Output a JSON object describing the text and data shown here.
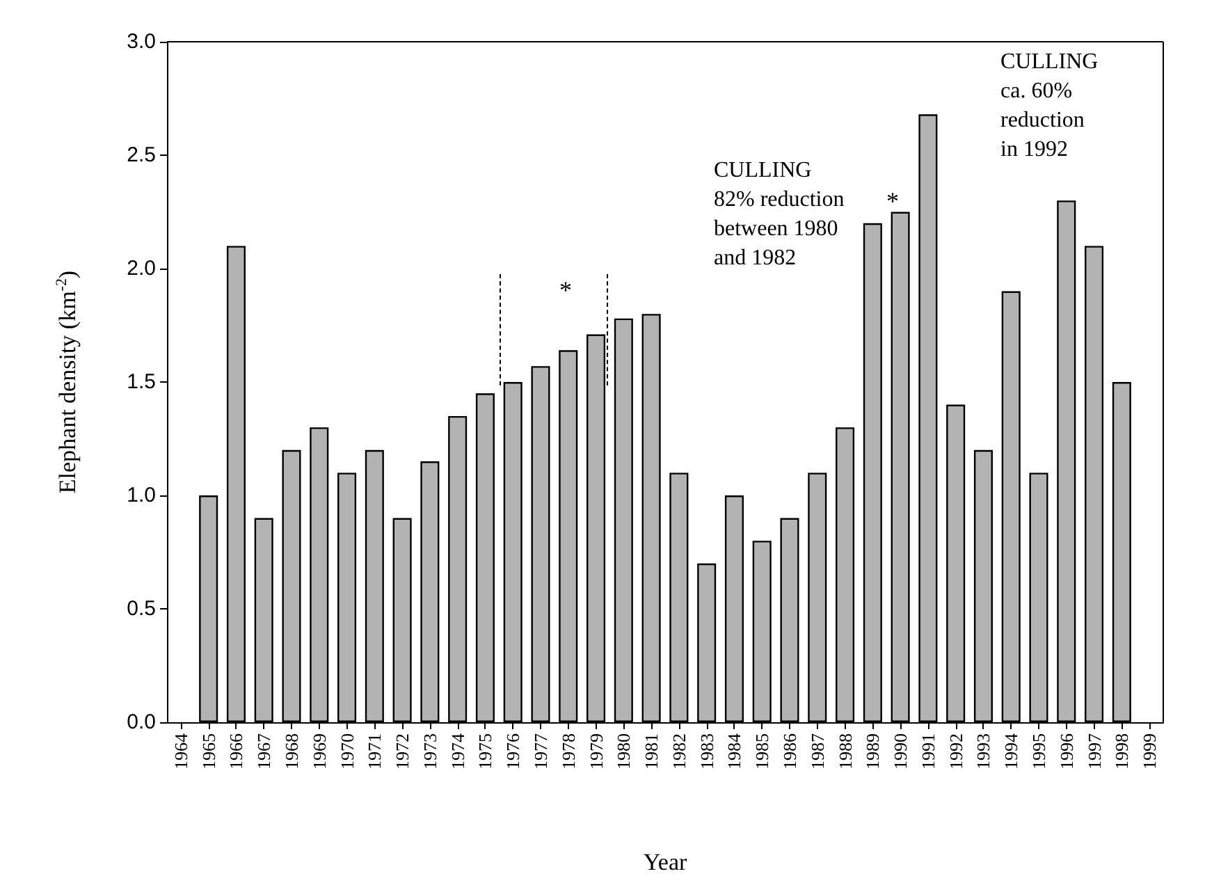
{
  "chart_data": {
    "type": "bar",
    "xlabel": "Year",
    "ylabel": "Elephant density (km$^{-2}$)",
    "categories": [
      "1964",
      "1965",
      "1966",
      "1967",
      "1968",
      "1969",
      "1970",
      "1971",
      "1972",
      "1973",
      "1974",
      "1975",
      "1976",
      "1977",
      "1978",
      "1979",
      "1980",
      "1981",
      "1982",
      "1983",
      "1984",
      "1985",
      "1986",
      "1987",
      "1988",
      "1989",
      "1990",
      "1991",
      "1992",
      "1993",
      "1994",
      "1995",
      "1996",
      "1997",
      "1998",
      "1999"
    ],
    "values": [
      null,
      1.0,
      2.1,
      0.9,
      1.2,
      1.3,
      1.1,
      1.2,
      0.9,
      1.15,
      1.35,
      1.45,
      1.5,
      1.57,
      1.64,
      1.71,
      1.78,
      1.8,
      1.1,
      0.7,
      1.0,
      0.8,
      0.9,
      1.1,
      1.3,
      2.2,
      2.25,
      2.68,
      1.4,
      1.2,
      1.9,
      1.1,
      2.3,
      2.1,
      1.5,
      null
    ],
    "color": "#b3b3b3",
    "ylim": [
      0,
      3.0
    ],
    "yticks": [
      {
        "value": 0,
        "label": "0.0"
      },
      {
        "value": 0.5,
        "label": "0.5"
      },
      {
        "value": 1.0,
        "label": "1.0"
      },
      {
        "value": 1.5,
        "label": "1.5"
      },
      {
        "value": 2.0,
        "label": "2.0"
      },
      {
        "value": 2.5,
        "label": "2.5"
      },
      {
        "value": 3.0,
        "label": "3.0"
      }
    ],
    "annotations": [
      "*",
      "*",
      "CULLING\n82% reduction\nbetween 1980\nand 1982",
      "CULLING\nca. 60%\nreduction\nin 1992"
    ],
    "grid": false
  }
}
